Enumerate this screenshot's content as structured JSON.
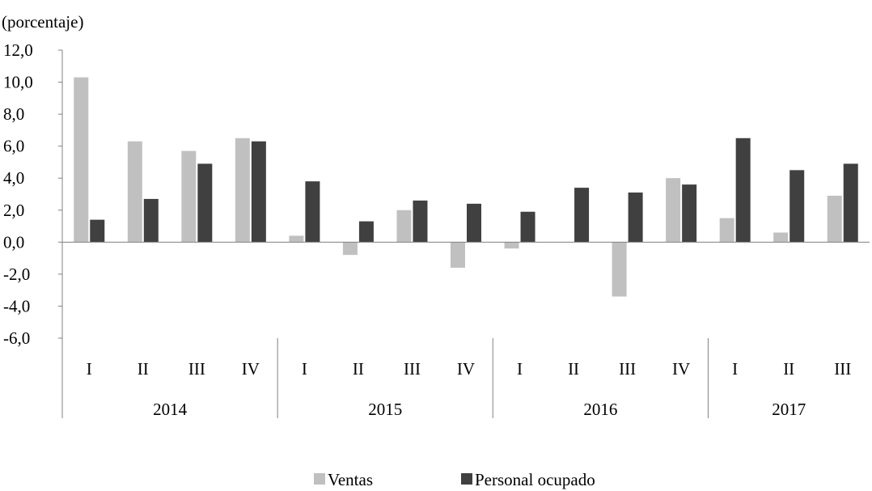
{
  "chart_data": {
    "type": "bar",
    "ylabel": "(porcentaje)",
    "ylim": [
      -6,
      12
    ],
    "y_ticks": [
      "12,0",
      "10,0",
      "8,0",
      "6,0",
      "4,0",
      "2,0",
      "0,0",
      "-2,0",
      "-4,0",
      "-6,0"
    ],
    "y_tick_values": [
      12,
      10,
      8,
      6,
      4,
      2,
      0,
      -2,
      -4,
      -6
    ],
    "categories": [
      "I",
      "II",
      "III",
      "IV",
      "I",
      "II",
      "III",
      "IV",
      "I",
      "II",
      "III",
      "IV",
      "I",
      "II",
      "III"
    ],
    "years": [
      {
        "label": "2014",
        "count": 4
      },
      {
        "label": "2015",
        "count": 4
      },
      {
        "label": "2016",
        "count": 4
      },
      {
        "label": "2017",
        "count": 3
      }
    ],
    "series": [
      {
        "name": "Ventas",
        "color": "#c0c0c0",
        "values": [
          10.3,
          6.3,
          5.7,
          6.5,
          0.4,
          -0.8,
          2.0,
          -1.6,
          -0.4,
          0.0,
          -3.4,
          4.0,
          1.5,
          0.6,
          2.9
        ]
      },
      {
        "name": "Personal ocupado",
        "color": "#404040",
        "values": [
          1.4,
          2.7,
          4.9,
          6.3,
          3.8,
          1.3,
          2.6,
          2.4,
          1.9,
          3.4,
          3.1,
          3.6,
          6.5,
          4.5,
          4.9
        ]
      }
    ],
    "legend_position": "bottom-center",
    "grid": false
  }
}
